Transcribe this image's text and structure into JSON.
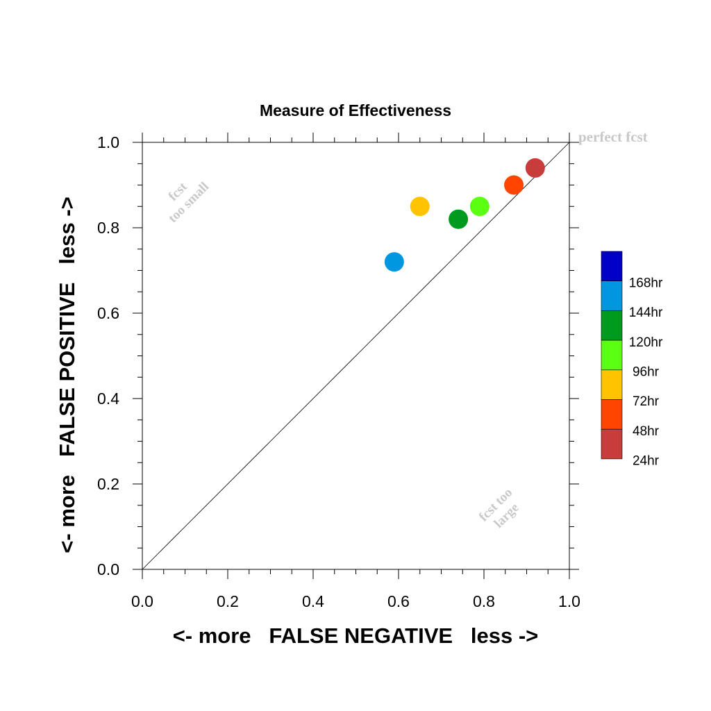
{
  "chart_data": {
    "type": "scatter",
    "title": "Measure of Effectiveness",
    "xlabel": "<- more   FALSE NEGATIVE   less ->",
    "ylabel": "<- more   FALSE POSITIVE   less ->",
    "xlim": [
      0.0,
      1.0
    ],
    "ylim": [
      0.0,
      1.0
    ],
    "xticks": [
      "0.0",
      "0.2",
      "0.4",
      "0.6",
      "0.8",
      "1.0"
    ],
    "yticks": [
      "0.0",
      "0.2",
      "0.4",
      "0.6",
      "0.8",
      "1.0"
    ],
    "grid": false,
    "diagonal_line": true,
    "annotations": {
      "perfect": "perfect fcst",
      "too_small": [
        "fcst",
        "too small"
      ],
      "too_large": [
        "fcst too",
        "large"
      ]
    },
    "legend": {
      "placement": "right",
      "entries": [
        {
          "label": "168hr",
          "color": "#0000c8"
        },
        {
          "label": "144hr",
          "color": "#0096e0"
        },
        {
          "label": "120hr",
          "color": "#009a1e"
        },
        {
          "label": "96hr",
          "color": "#5aff12"
        },
        {
          "label": "72hr",
          "color": "#ffc300"
        },
        {
          "label": "48hr",
          "color": "#ff4500"
        },
        {
          "label": "24hr",
          "color": "#c83c3c"
        }
      ]
    },
    "points": [
      {
        "series": "144hr",
        "x": 0.59,
        "y": 0.72,
        "color": "#0096e0"
      },
      {
        "series": "120hr",
        "x": 0.74,
        "y": 0.82,
        "color": "#009a1e"
      },
      {
        "series": "96hr",
        "x": 0.79,
        "y": 0.85,
        "color": "#5aff12"
      },
      {
        "series": "72hr",
        "x": 0.65,
        "y": 0.85,
        "color": "#ffc300"
      },
      {
        "series": "48hr",
        "x": 0.87,
        "y": 0.9,
        "color": "#ff4500"
      },
      {
        "series": "24hr",
        "x": 0.92,
        "y": 0.94,
        "color": "#c83c3c"
      }
    ]
  }
}
